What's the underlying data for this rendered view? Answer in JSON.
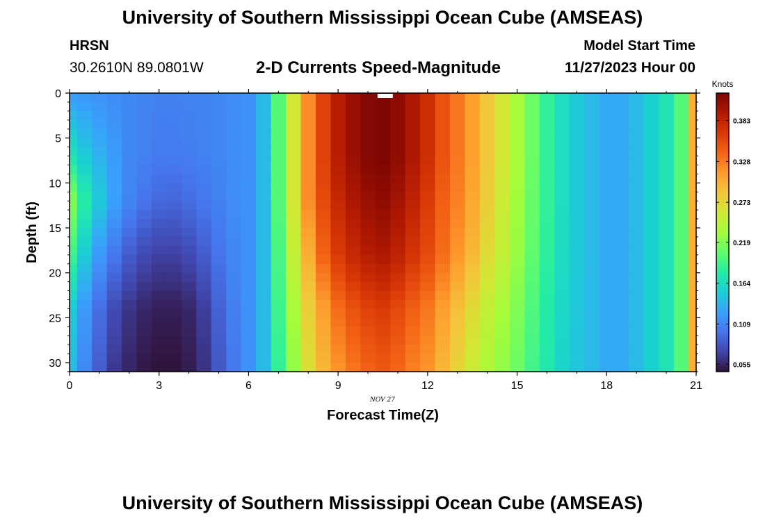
{
  "header": {
    "title": "University of Southern Mississippi Ocean Cube (AMSEAS)",
    "station": "HRSN",
    "coords": "30.2610N  89.0801W",
    "plot_title": "2-D Currents Speed-Magnitude",
    "start_label": "Model Start Time",
    "start_value": "11/27/2023 Hour 00"
  },
  "footer": {
    "title": "University of Southern Mississippi Ocean Cube (AMSEAS)"
  },
  "chart_data": {
    "type": "heatmap",
    "title": "2-D Currents Speed-Magnitude",
    "xlabel": "Forecast Time(Z)",
    "ylabel": "Depth (ft)",
    "date_label": "NOV 27",
    "xlim": [
      0,
      21
    ],
    "ylim": [
      0,
      31
    ],
    "x_ticks": [
      0,
      3,
      6,
      9,
      12,
      15,
      18,
      21
    ],
    "y_ticks": [
      0,
      5,
      10,
      15,
      20,
      25,
      30
    ],
    "colorbar": {
      "label": "Knots",
      "ticks": [
        0.055,
        0.109,
        0.164,
        0.219,
        0.273,
        0.328,
        0.383
      ],
      "range": [
        0.045,
        0.42
      ]
    },
    "colormap": [
      "#30123b",
      "#4145ab",
      "#4675ed",
      "#39a2fc",
      "#1bcfd4",
      "#24eca6",
      "#61fc6c",
      "#a4fc3b",
      "#d1e834",
      "#f3c63a",
      "#fe9b2d",
      "#f36315",
      "#d93806",
      "#b11901",
      "#7a0403"
    ],
    "time_steps": [
      0,
      0.5,
      1,
      1.5,
      2,
      2.5,
      3,
      3.5,
      4,
      4.5,
      5,
      5.5,
      6,
      6.5,
      7,
      7.5,
      8,
      8.5,
      9,
      9.5,
      10,
      10.5,
      11,
      11.5,
      12,
      12.5,
      13,
      13.5,
      14,
      14.5,
      15,
      15.5,
      16,
      16.5,
      17,
      17.5,
      18,
      18.5,
      19,
      19.5,
      20,
      20.5,
      21
    ],
    "depth_profiles": [
      {
        "depth": 0,
        "speeds": [
          0.12,
          0.118,
          0.115,
          0.112,
          0.11,
          0.108,
          0.106,
          0.106,
          0.107,
          0.108,
          0.11,
          0.113,
          0.116,
          0.14,
          0.2,
          0.26,
          0.32,
          0.36,
          0.39,
          0.405,
          0.415,
          0.418,
          0.41,
          0.395,
          0.375,
          0.35,
          0.33,
          0.31,
          0.285,
          0.26,
          0.235,
          0.21,
          0.185,
          0.165,
          0.15,
          0.14,
          0.13,
          0.13,
          0.14,
          0.155,
          0.17,
          0.2,
          0.3
        ]
      },
      {
        "depth": 7,
        "speeds": [
          0.17,
          0.15,
          0.135,
          0.122,
          0.11,
          0.106,
          0.102,
          0.102,
          0.104,
          0.106,
          0.109,
          0.113,
          0.116,
          0.14,
          0.2,
          0.26,
          0.32,
          0.36,
          0.39,
          0.405,
          0.415,
          0.418,
          0.41,
          0.395,
          0.375,
          0.35,
          0.33,
          0.31,
          0.285,
          0.26,
          0.235,
          0.21,
          0.185,
          0.165,
          0.15,
          0.14,
          0.13,
          0.13,
          0.14,
          0.155,
          0.17,
          0.2,
          0.3
        ]
      },
      {
        "depth": 12,
        "speeds": [
          0.22,
          0.18,
          0.15,
          0.125,
          0.108,
          0.098,
          0.092,
          0.09,
          0.094,
          0.1,
          0.106,
          0.112,
          0.116,
          0.14,
          0.2,
          0.26,
          0.32,
          0.355,
          0.38,
          0.395,
          0.405,
          0.41,
          0.4,
          0.385,
          0.365,
          0.342,
          0.325,
          0.305,
          0.28,
          0.255,
          0.232,
          0.208,
          0.185,
          0.165,
          0.15,
          0.14,
          0.13,
          0.13,
          0.14,
          0.155,
          0.17,
          0.2,
          0.3
        ]
      },
      {
        "depth": 18,
        "speeds": [
          0.19,
          0.15,
          0.12,
          0.1,
          0.085,
          0.075,
          0.07,
          0.07,
          0.075,
          0.085,
          0.098,
          0.11,
          0.116,
          0.14,
          0.195,
          0.25,
          0.3,
          0.34,
          0.365,
          0.38,
          0.39,
          0.395,
          0.385,
          0.37,
          0.355,
          0.335,
          0.315,
          0.295,
          0.27,
          0.25,
          0.228,
          0.205,
          0.183,
          0.163,
          0.15,
          0.14,
          0.13,
          0.13,
          0.14,
          0.155,
          0.17,
          0.2,
          0.3
        ]
      },
      {
        "depth": 24,
        "speeds": [
          0.15,
          0.12,
          0.095,
          0.075,
          0.063,
          0.056,
          0.052,
          0.052,
          0.056,
          0.068,
          0.088,
          0.105,
          0.116,
          0.14,
          0.19,
          0.235,
          0.28,
          0.31,
          0.335,
          0.35,
          0.36,
          0.365,
          0.355,
          0.342,
          0.33,
          0.31,
          0.29,
          0.27,
          0.25,
          0.235,
          0.218,
          0.198,
          0.178,
          0.16,
          0.148,
          0.14,
          0.13,
          0.13,
          0.14,
          0.155,
          0.17,
          0.2,
          0.3
        ]
      },
      {
        "depth": 31,
        "speeds": [
          0.14,
          0.11,
          0.085,
          0.065,
          0.055,
          0.048,
          0.045,
          0.045,
          0.05,
          0.062,
          0.082,
          0.1,
          0.115,
          0.14,
          0.185,
          0.225,
          0.265,
          0.295,
          0.315,
          0.33,
          0.34,
          0.345,
          0.338,
          0.325,
          0.315,
          0.295,
          0.275,
          0.255,
          0.238,
          0.225,
          0.21,
          0.192,
          0.175,
          0.158,
          0.147,
          0.14,
          0.13,
          0.13,
          0.14,
          0.155,
          0.17,
          0.2,
          0.3
        ]
      }
    ]
  }
}
